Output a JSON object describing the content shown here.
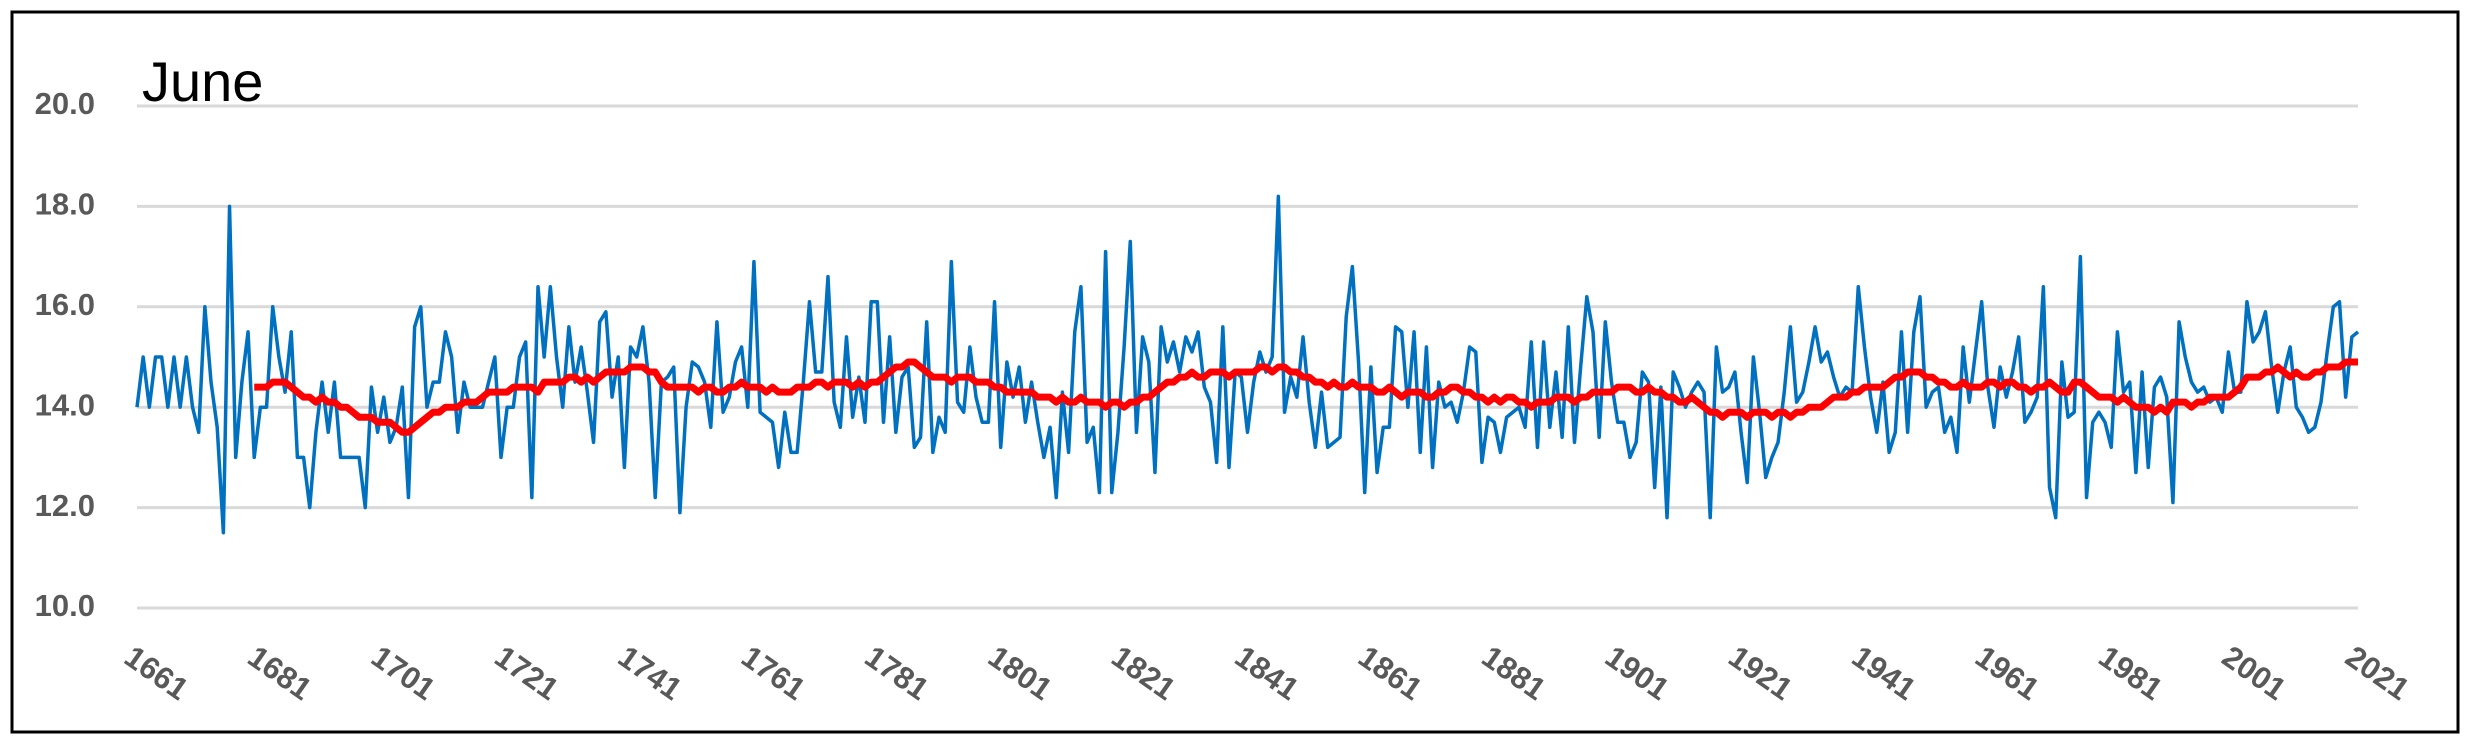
{
  "chart_data": {
    "type": "line",
    "title": "June",
    "x": [
      1661,
      1662,
      1663,
      1664,
      1665,
      1666,
      1667,
      1668,
      1669,
      1670,
      1671,
      1672,
      1673,
      1674,
      1675,
      1676,
      1677,
      1678,
      1679,
      1680,
      1681,
      1682,
      1683,
      1684,
      1685,
      1686,
      1687,
      1688,
      1689,
      1690,
      1691,
      1692,
      1693,
      1694,
      1695,
      1696,
      1697,
      1698,
      1699,
      1700,
      1701,
      1702,
      1703,
      1704,
      1705,
      1706,
      1707,
      1708,
      1709,
      1710,
      1711,
      1712,
      1713,
      1714,
      1715,
      1716,
      1717,
      1718,
      1719,
      1720,
      1721,
      1722,
      1723,
      1724,
      1725,
      1726,
      1727,
      1728,
      1729,
      1730,
      1731,
      1732,
      1733,
      1734,
      1735,
      1736,
      1737,
      1738,
      1739,
      1740,
      1741,
      1742,
      1743,
      1744,
      1745,
      1746,
      1747,
      1748,
      1749,
      1750,
      1751,
      1752,
      1753,
      1754,
      1755,
      1756,
      1757,
      1758,
      1759,
      1760,
      1761,
      1762,
      1763,
      1764,
      1765,
      1766,
      1767,
      1768,
      1769,
      1770,
      1771,
      1772,
      1773,
      1774,
      1775,
      1776,
      1777,
      1778,
      1779,
      1780,
      1781,
      1782,
      1783,
      1784,
      1785,
      1786,
      1787,
      1788,
      1789,
      1790,
      1791,
      1792,
      1793,
      1794,
      1795,
      1796,
      1797,
      1798,
      1799,
      1800,
      1801,
      1802,
      1803,
      1804,
      1805,
      1806,
      1807,
      1808,
      1809,
      1810,
      1811,
      1812,
      1813,
      1814,
      1815,
      1816,
      1817,
      1818,
      1819,
      1820,
      1821,
      1822,
      1823,
      1824,
      1825,
      1826,
      1827,
      1828,
      1829,
      1830,
      1831,
      1832,
      1833,
      1834,
      1835,
      1836,
      1837,
      1838,
      1839,
      1840,
      1841,
      1842,
      1843,
      1844,
      1845,
      1846,
      1847,
      1848,
      1849,
      1850,
      1851,
      1852,
      1853,
      1854,
      1855,
      1856,
      1857,
      1858,
      1859,
      1860,
      1861,
      1862,
      1863,
      1864,
      1865,
      1866,
      1867,
      1868,
      1869,
      1870,
      1871,
      1872,
      1873,
      1874,
      1875,
      1876,
      1877,
      1878,
      1879,
      1880,
      1881,
      1882,
      1883,
      1884,
      1885,
      1886,
      1887,
      1888,
      1889,
      1890,
      1891,
      1892,
      1893,
      1894,
      1895,
      1896,
      1897,
      1898,
      1899,
      1900,
      1901,
      1902,
      1903,
      1904,
      1905,
      1906,
      1907,
      1908,
      1909,
      1910,
      1911,
      1912,
      1913,
      1914,
      1915,
      1916,
      1917,
      1918,
      1919,
      1920,
      1921,
      1922,
      1923,
      1924,
      1925,
      1926,
      1927,
      1928,
      1929,
      1930,
      1931,
      1932,
      1933,
      1934,
      1935,
      1936,
      1937,
      1938,
      1939,
      1940,
      1941,
      1942,
      1943,
      1944,
      1945,
      1946,
      1947,
      1948,
      1949,
      1950,
      1951,
      1952,
      1953,
      1954,
      1955,
      1956,
      1957,
      1958,
      1959,
      1960,
      1961,
      1962,
      1963,
      1964,
      1965,
      1966,
      1967,
      1968,
      1969,
      1970,
      1971,
      1972,
      1973,
      1974,
      1975,
      1976,
      1977,
      1978,
      1979,
      1980,
      1981,
      1982,
      1983,
      1984,
      1985,
      1986,
      1987,
      1988,
      1989,
      1990,
      1991,
      1992,
      1993,
      1994,
      1995,
      1996,
      1997,
      1998,
      1999,
      2000,
      2001,
      2002,
      2003,
      2004,
      2005,
      2006,
      2007,
      2008,
      2009,
      2010,
      2011,
      2012,
      2013,
      2014,
      2015,
      2016,
      2017,
      2018,
      2019,
      2020,
      2021
    ],
    "series": [
      {
        "color": "#0070c0",
        "values": [
          14.0,
          15.0,
          14.0,
          15.0,
          15.0,
          14.0,
          15.0,
          14.0,
          15.0,
          14.0,
          13.5,
          16.0,
          14.5,
          13.6,
          11.5,
          18.0,
          13.0,
          14.5,
          15.5,
          13.0,
          14.0,
          14.0,
          16.0,
          15.0,
          14.3,
          15.5,
          13.0,
          13.0,
          12.0,
          13.5,
          14.5,
          13.5,
          14.5,
          13.0,
          13.0,
          13.0,
          13.0,
          12.0,
          14.4,
          13.5,
          14.2,
          13.3,
          13.6,
          14.4,
          12.2,
          15.6,
          16.0,
          14.0,
          14.5,
          14.5,
          15.5,
          15.0,
          13.5,
          14.5,
          14.0,
          14.0,
          14.0,
          14.5,
          15.0,
          13.0,
          14.0,
          14.0,
          15.0,
          15.3,
          12.2,
          16.4,
          15.0,
          16.4,
          15.0,
          14.0,
          15.6,
          14.5,
          15.2,
          14.3,
          13.3,
          15.7,
          15.9,
          14.2,
          15.0,
          12.8,
          15.2,
          15.0,
          15.6,
          14.5,
          12.2,
          14.5,
          14.6,
          14.8,
          11.9,
          14.0,
          14.9,
          14.8,
          14.5,
          13.6,
          15.7,
          13.9,
          14.2,
          14.9,
          15.2,
          14.0,
          16.9,
          13.9,
          13.8,
          13.7,
          12.8,
          13.9,
          13.1,
          13.1,
          14.5,
          16.1,
          14.7,
          14.7,
          16.6,
          14.1,
          13.6,
          15.4,
          13.8,
          14.6,
          13.7,
          16.1,
          16.1,
          13.7,
          15.4,
          13.5,
          14.6,
          14.8,
          13.2,
          13.4,
          15.7,
          13.1,
          13.8,
          13.5,
          16.9,
          14.1,
          13.9,
          15.2,
          14.2,
          13.7,
          13.7,
          16.1,
          13.2,
          14.9,
          14.2,
          14.8,
          13.7,
          14.5,
          13.7,
          13.0,
          13.6,
          12.2,
          14.3,
          13.1,
          15.5,
          16.4,
          13.3,
          13.6,
          12.3,
          17.1,
          12.3,
          13.5,
          15.2,
          17.3,
          13.5,
          15.4,
          14.9,
          12.7,
          15.6,
          14.9,
          15.3,
          14.7,
          15.4,
          15.1,
          15.5,
          14.4,
          14.1,
          12.9,
          15.6,
          12.8,
          14.7,
          14.6,
          13.5,
          14.5,
          15.1,
          14.7,
          15.0,
          18.2,
          13.9,
          14.6,
          14.2,
          15.4,
          14.1,
          13.2,
          14.3,
          13.2,
          13.3,
          13.4,
          15.8,
          16.8,
          14.9,
          12.3,
          14.8,
          12.7,
          13.6,
          13.6,
          15.6,
          15.5,
          14.0,
          15.5,
          13.1,
          15.2,
          12.8,
          14.5,
          14.0,
          14.1,
          13.7,
          14.3,
          15.2,
          15.1,
          12.9,
          13.8,
          13.7,
          13.1,
          13.8,
          13.9,
          14.0,
          13.6,
          15.3,
          13.2,
          15.3,
          13.6,
          14.7,
          13.4,
          15.6,
          13.3,
          14.8,
          16.2,
          15.5,
          13.4,
          15.7,
          14.5,
          13.7,
          13.7,
          13.0,
          13.3,
          14.7,
          14.5,
          12.4,
          14.4,
          11.8,
          14.7,
          14.4,
          14.0,
          14.3,
          14.5,
          14.3,
          11.8,
          15.2,
          14.3,
          14.4,
          14.7,
          13.5,
          12.5,
          15.0,
          13.9,
          12.6,
          13.0,
          13.3,
          14.3,
          15.6,
          14.1,
          14.3,
          14.9,
          15.6,
          14.9,
          15.1,
          14.6,
          14.2,
          14.4,
          14.3,
          16.4,
          15.2,
          14.2,
          13.5,
          14.5,
          13.1,
          13.5,
          15.5,
          13.5,
          15.5,
          16.2,
          14.0,
          14.3,
          14.4,
          13.5,
          13.8,
          13.1,
          15.2,
          14.1,
          15.1,
          16.1,
          14.4,
          13.6,
          14.8,
          14.2,
          14.7,
          15.4,
          13.7,
          13.9,
          14.2,
          16.4,
          12.4,
          11.8,
          14.9,
          13.8,
          13.9,
          17.0,
          12.2,
          13.7,
          13.9,
          13.7,
          13.2,
          15.5,
          14.3,
          14.5,
          12.7,
          14.7,
          12.8,
          14.4,
          14.6,
          14.2,
          12.1,
          15.7,
          15.0,
          14.5,
          14.3,
          14.4,
          14.1,
          14.2,
          13.9,
          15.1,
          14.3,
          14.3,
          16.1,
          15.3,
          15.5,
          15.9,
          14.8,
          13.9,
          14.7,
          15.2,
          14.0,
          13.8,
          13.5,
          13.6,
          14.1,
          15.1,
          16.0,
          16.1,
          14.2,
          15.4,
          15.5
        ]
      },
      {
        "color": "#ff0000",
        "values": [
          null,
          null,
          null,
          null,
          null,
          null,
          null,
          null,
          null,
          null,
          null,
          null,
          null,
          null,
          null,
          null,
          null,
          null,
          null,
          14.4,
          14.4,
          14.4,
          14.5,
          14.5,
          14.5,
          14.4,
          14.3,
          14.2,
          14.2,
          14.1,
          14.2,
          14.1,
          14.1,
          14.0,
          14.0,
          13.9,
          13.8,
          13.8,
          13.8,
          13.7,
          13.7,
          13.7,
          13.6,
          13.5,
          13.5,
          13.6,
          13.7,
          13.8,
          13.9,
          13.9,
          14.0,
          14.0,
          14.0,
          14.1,
          14.1,
          14.1,
          14.2,
          14.3,
          14.3,
          14.3,
          14.3,
          14.4,
          14.4,
          14.4,
          14.4,
          14.3,
          14.5,
          14.5,
          14.5,
          14.5,
          14.6,
          14.6,
          14.5,
          14.6,
          14.5,
          14.6,
          14.7,
          14.7,
          14.7,
          14.7,
          14.8,
          14.8,
          14.8,
          14.7,
          14.7,
          14.5,
          14.4,
          14.4,
          14.4,
          14.4,
          14.4,
          14.3,
          14.4,
          14.4,
          14.3,
          14.3,
          14.4,
          14.4,
          14.5,
          14.4,
          14.4,
          14.4,
          14.3,
          14.4,
          14.3,
          14.3,
          14.3,
          14.4,
          14.4,
          14.4,
          14.5,
          14.5,
          14.4,
          14.5,
          14.5,
          14.5,
          14.4,
          14.5,
          14.4,
          14.5,
          14.5,
          14.6,
          14.7,
          14.8,
          14.8,
          14.9,
          14.9,
          14.8,
          14.7,
          14.6,
          14.6,
          14.6,
          14.5,
          14.6,
          14.6,
          14.6,
          14.5,
          14.5,
          14.5,
          14.4,
          14.4,
          14.3,
          14.3,
          14.3,
          14.3,
          14.3,
          14.2,
          14.2,
          14.2,
          14.1,
          14.2,
          14.1,
          14.1,
          14.2,
          14.1,
          14.1,
          14.1,
          14.0,
          14.1,
          14.1,
          14.0,
          14.1,
          14.1,
          14.2,
          14.2,
          14.3,
          14.4,
          14.5,
          14.5,
          14.6,
          14.6,
          14.7,
          14.6,
          14.6,
          14.7,
          14.7,
          14.7,
          14.6,
          14.7,
          14.7,
          14.7,
          14.7,
          14.8,
          14.8,
          14.7,
          14.8,
          14.8,
          14.7,
          14.7,
          14.6,
          14.6,
          14.5,
          14.5,
          14.4,
          14.5,
          14.4,
          14.4,
          14.5,
          14.4,
          14.4,
          14.4,
          14.3,
          14.3,
          14.4,
          14.3,
          14.2,
          14.3,
          14.3,
          14.3,
          14.2,
          14.2,
          14.3,
          14.3,
          14.4,
          14.4,
          14.3,
          14.3,
          14.2,
          14.2,
          14.1,
          14.2,
          14.1,
          14.2,
          14.2,
          14.1,
          14.1,
          14.0,
          14.1,
          14.1,
          14.1,
          14.2,
          14.2,
          14.2,
          14.1,
          14.2,
          14.2,
          14.3,
          14.3,
          14.3,
          14.3,
          14.4,
          14.4,
          14.4,
          14.3,
          14.3,
          14.4,
          14.3,
          14.3,
          14.2,
          14.2,
          14.1,
          14.1,
          14.2,
          14.1,
          14.0,
          13.9,
          13.9,
          13.8,
          13.9,
          13.9,
          13.9,
          13.8,
          13.9,
          13.9,
          13.9,
          13.8,
          13.9,
          13.9,
          13.8,
          13.9,
          13.9,
          14.0,
          14.0,
          14.0,
          14.1,
          14.2,
          14.2,
          14.2,
          14.3,
          14.3,
          14.4,
          14.4,
          14.4,
          14.4,
          14.5,
          14.6,
          14.6,
          14.7,
          14.7,
          14.7,
          14.6,
          14.6,
          14.5,
          14.5,
          14.4,
          14.4,
          14.5,
          14.4,
          14.4,
          14.4,
          14.5,
          14.5,
          14.4,
          14.5,
          14.5,
          14.4,
          14.4,
          14.3,
          14.4,
          14.4,
          14.5,
          14.4,
          14.3,
          14.3,
          14.5,
          14.5,
          14.4,
          14.3,
          14.2,
          14.2,
          14.2,
          14.1,
          14.2,
          14.1,
          14.0,
          14.0,
          14.0,
          13.9,
          14.0,
          13.9,
          14.1,
          14.1,
          14.1,
          14.0,
          14.1,
          14.1,
          14.2,
          14.2,
          14.2,
          14.2,
          14.3,
          14.4,
          14.6,
          14.6,
          14.6,
          14.7,
          14.7,
          14.8,
          14.7,
          14.6,
          14.7,
          14.6,
          14.6,
          14.7,
          14.7,
          14.8,
          14.8,
          14.8,
          14.9,
          14.9,
          14.9
        ]
      }
    ],
    "xlim": [
      1661,
      2021
    ],
    "xticks": [
      1661,
      1681,
      1701,
      1721,
      1741,
      1761,
      1781,
      1801,
      1821,
      1841,
      1861,
      1881,
      1901,
      1921,
      1941,
      1961,
      1981,
      2001,
      2021
    ],
    "ylim": [
      10,
      20
    ],
    "yticks": [
      {
        "value": 10,
        "label": "10.0"
      },
      {
        "value": 12,
        "label": "12.0"
      },
      {
        "value": 14,
        "label": "14.0"
      },
      {
        "value": 16,
        "label": "16.0"
      },
      {
        "value": 18,
        "label": "18.0"
      },
      {
        "value": 20,
        "label": "20.0"
      }
    ],
    "grid": true
  }
}
